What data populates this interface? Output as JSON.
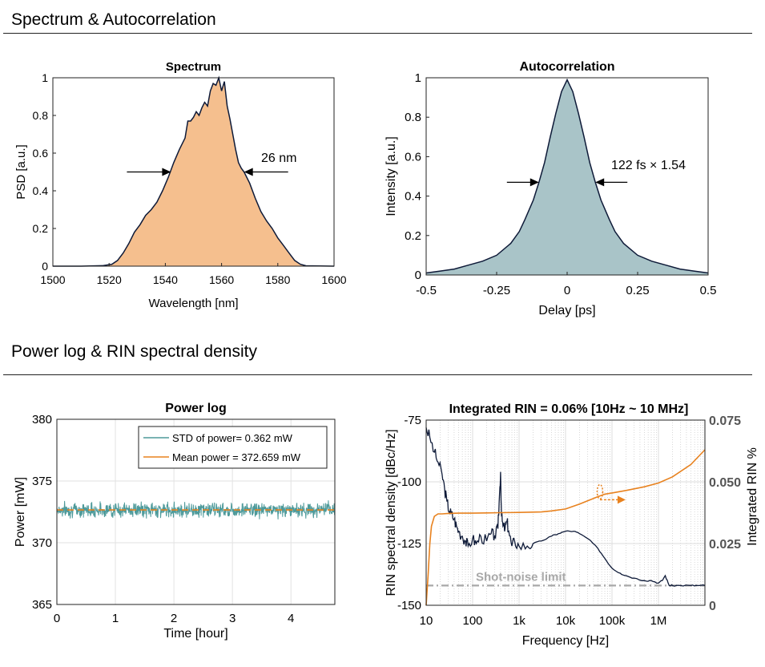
{
  "sections": [
    {
      "title": "Spectrum & Autocorrelation"
    },
    {
      "title": "Power log & RIN spectral density"
    }
  ],
  "colors": {
    "spectrum_fill": "#f5bf8e",
    "autocorr_fill": "#a9c4c8",
    "outline": "#0e1a38",
    "power_trace": "#4e9a9a",
    "mean_line": "#e8821f",
    "rin_trace": "#0e1a38",
    "integrated": "#e8821f",
    "shot_noise": "#a8a8a8"
  },
  "chart_data": [
    {
      "type": "area",
      "title": "Spectrum",
      "xlabel": "Wavelength [nm]",
      "ylabel": "PSD [a.u.]",
      "xlim": [
        1500,
        1600
      ],
      "ylim": [
        0,
        1
      ],
      "xticks": [
        "1500",
        "1520",
        "1540",
        "1560",
        "1580",
        "1600"
      ],
      "yticks": [
        "0",
        "0.2",
        "0.4",
        "0.6",
        "0.8",
        "1"
      ],
      "grid": false,
      "annotation": "26 nm",
      "fwhm_y": 0.5,
      "fwhm_left": 1542,
      "fwhm_right": 1568,
      "x": [
        1500,
        1510,
        1518,
        1521,
        1523,
        1525,
        1527,
        1529,
        1531,
        1533,
        1535,
        1537,
        1539,
        1541,
        1543,
        1545,
        1547,
        1548,
        1549,
        1550,
        1551,
        1552,
        1553,
        1554,
        1555,
        1556,
        1557,
        1558,
        1559,
        1560,
        1561,
        1562,
        1563,
        1564,
        1565,
        1566,
        1567,
        1568,
        1570,
        1572,
        1574,
        1576,
        1578,
        1580,
        1582,
        1584,
        1586,
        1588,
        1590,
        1600
      ],
      "y": [
        0,
        0,
        0.003,
        0.01,
        0.03,
        0.07,
        0.12,
        0.18,
        0.22,
        0.27,
        0.3,
        0.34,
        0.4,
        0.47,
        0.55,
        0.62,
        0.68,
        0.77,
        0.77,
        0.79,
        0.82,
        0.8,
        0.84,
        0.87,
        0.85,
        0.93,
        0.97,
        0.96,
        1.0,
        0.93,
        0.98,
        0.85,
        0.78,
        0.7,
        0.62,
        0.55,
        0.52,
        0.5,
        0.44,
        0.36,
        0.29,
        0.24,
        0.2,
        0.15,
        0.11,
        0.07,
        0.03,
        0.01,
        0.002,
        0
      ]
    },
    {
      "type": "area",
      "title": "Autocorrelation",
      "xlabel": "Delay [ps]",
      "ylabel": "Intensity [a.u.]",
      "xlim": [
        -0.5,
        0.5
      ],
      "ylim": [
        0,
        1
      ],
      "xticks": [
        "-0.5",
        "-0.25",
        "0",
        "0.25",
        "0.5"
      ],
      "yticks": [
        "0",
        "0.2",
        "0.4",
        "0.6",
        "0.8",
        "1"
      ],
      "grid": false,
      "annotation": "122 fs × 1.54",
      "fwhm_y": 0.47,
      "fwhm_left": -0.1,
      "fwhm_right": 0.1,
      "x": [
        -0.5,
        -0.45,
        -0.4,
        -0.35,
        -0.3,
        -0.25,
        -0.2,
        -0.17,
        -0.15,
        -0.12,
        -0.1,
        -0.08,
        -0.06,
        -0.04,
        -0.02,
        0,
        0.02,
        0.04,
        0.06,
        0.08,
        0.1,
        0.12,
        0.15,
        0.17,
        0.2,
        0.25,
        0.3,
        0.35,
        0.4,
        0.45,
        0.5
      ],
      "y": [
        0.01,
        0.02,
        0.03,
        0.05,
        0.07,
        0.1,
        0.16,
        0.22,
        0.28,
        0.38,
        0.47,
        0.57,
        0.7,
        0.82,
        0.93,
        0.99,
        0.93,
        0.82,
        0.7,
        0.57,
        0.47,
        0.38,
        0.28,
        0.22,
        0.16,
        0.1,
        0.07,
        0.05,
        0.03,
        0.02,
        0.01
      ]
    },
    {
      "type": "line",
      "title": "Power log",
      "xlabel": "Time [hour]",
      "ylabel": "Power [mW]",
      "xlim": [
        0,
        4.75
      ],
      "ylim": [
        365,
        380
      ],
      "xticks": [
        "0",
        "1",
        "2",
        "3",
        "4"
      ],
      "yticks": [
        "365",
        "370",
        "375",
        "380"
      ],
      "grid": true,
      "legend_position": "top-right",
      "series": [
        {
          "name": "STD of power= 0.362 mW",
          "mean": 372.659,
          "std": 0.362
        },
        {
          "name": "Mean power = 372.659 mW",
          "value": 372.659
        }
      ]
    },
    {
      "type": "line",
      "title": "Integrated RIN = 0.06% [10Hz ~ 10 MHz]",
      "xlabel": "Frequency [Hz]",
      "ylabel": "RIN spectral density [dBc/Hz]",
      "ylabel_right": "Integrated RIN %",
      "x_scale": "log",
      "xlim": [
        10,
        10000000
      ],
      "ylim": [
        -150,
        -75
      ],
      "ylim_right": [
        0,
        0.075
      ],
      "xticks": [
        "10",
        "100",
        "1k",
        "10k",
        "100k",
        "1M"
      ],
      "yticks": [
        "-150",
        "-125",
        "-100",
        "-75"
      ],
      "yticks_right": [
        "0",
        "0.025",
        "0.050",
        "0.075"
      ],
      "grid": true,
      "annotation": "Shot-noise limit",
      "shot_noise_level": -142,
      "series": [
        {
          "name": "RIN spectral density",
          "x": [
            10,
            12,
            15,
            18,
            22,
            25,
            28,
            32,
            35,
            40,
            45,
            50,
            60,
            70,
            80,
            100,
            120,
            150,
            200,
            250,
            300,
            350,
            380,
            400,
            420,
            450,
            500,
            550,
            600,
            700,
            800,
            1000,
            1500,
            2000,
            3000,
            5000,
            7000,
            10000,
            15000,
            20000,
            30000,
            50000,
            70000,
            100000,
            150000,
            200000,
            300000,
            500000,
            700000,
            1000000,
            1200000,
            1400000,
            1700000,
            2000000,
            3000000,
            5000000,
            7000000,
            10000000
          ],
          "y": [
            -78,
            -82,
            -88,
            -92,
            -97,
            -103,
            -108,
            -112,
            -113,
            -115,
            -118,
            -120,
            -122,
            -124,
            -126,
            -123,
            -125,
            -122,
            -124,
            -121,
            -122,
            -119,
            -105,
            -96,
            -114,
            -118,
            -119,
            -116,
            -120,
            -126,
            -124,
            -126,
            -126,
            -125,
            -124,
            -122,
            -121,
            -120,
            -120,
            -121,
            -123,
            -127,
            -131,
            -135,
            -137,
            -138,
            -139,
            -140,
            -140,
            -141,
            -140,
            -138,
            -142,
            -142,
            -142,
            -142,
            -142,
            -142
          ]
        },
        {
          "name": "Integrated RIN",
          "x": [
            10,
            11,
            12,
            13,
            15,
            18,
            22,
            30,
            50,
            100,
            200,
            400,
            1000,
            3000,
            5000,
            10000,
            20000,
            50000,
            70000,
            100000,
            200000,
            500000,
            1000000,
            2000000,
            5000000,
            10000000
          ],
          "y": [
            0,
            0.012,
            0.025,
            0.032,
            0.036,
            0.037,
            0.037,
            0.0372,
            0.0373,
            0.0373,
            0.0374,
            0.0375,
            0.0376,
            0.0378,
            0.0382,
            0.039,
            0.041,
            0.044,
            0.045,
            0.0455,
            0.0465,
            0.048,
            0.0495,
            0.052,
            0.057,
            0.063
          ]
        }
      ]
    }
  ]
}
